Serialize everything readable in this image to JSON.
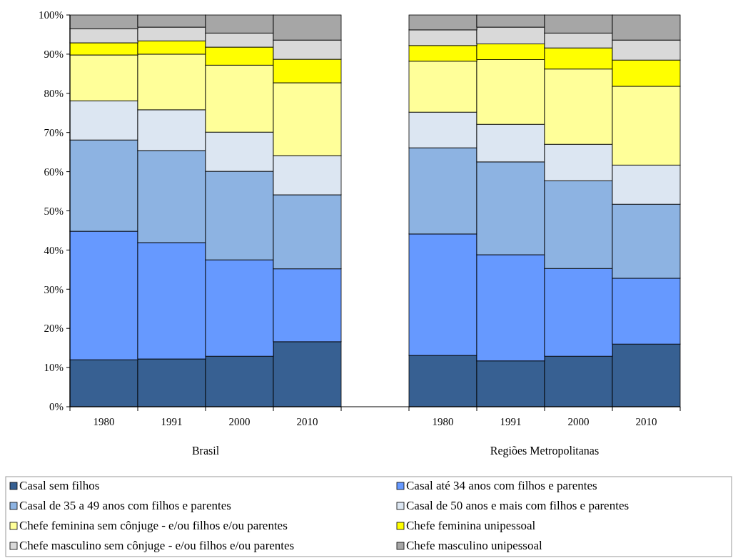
{
  "chart_data": {
    "type": "bar",
    "stacked": true,
    "categories": [
      "1980",
      "1991",
      "2000",
      "2010",
      null,
      "1980",
      "1991",
      "2000",
      "2010"
    ],
    "ylim": [
      0,
      100
    ],
    "yticks": [
      {
        "value": 0,
        "label": "0%"
      },
      {
        "value": 10,
        "label": "10%"
      },
      {
        "value": 20,
        "label": "20%"
      },
      {
        "value": 30,
        "label": "30%"
      },
      {
        "value": 40,
        "label": "40%"
      },
      {
        "value": 50,
        "label": "50%"
      },
      {
        "value": 60,
        "label": "60%"
      },
      {
        "value": 70,
        "label": "70%"
      },
      {
        "value": 80,
        "label": "80%"
      },
      {
        "value": 90,
        "label": "90%"
      },
      {
        "value": 100,
        "label": "100%"
      }
    ],
    "annotations": [
      "Brasil",
      "Regiões Metropolitanas"
    ],
    "legend": "bottom",
    "series": [
      {
        "name": "Casal sem filhos",
        "color": "#376092",
        "values": [
          12,
          12.2,
          12.9,
          16.6,
          null,
          13.1,
          11.7,
          12.9,
          16
        ]
      },
      {
        "name": "Casal até 34 anos com filhos e parentes",
        "color": "#6699ff",
        "values": [
          32.8,
          29.7,
          24.6,
          18.6,
          null,
          31,
          27.1,
          22.4,
          16.8
        ]
      },
      {
        "name": "Casal de 35 a 49 anos com filhos e parentes",
        "color": "#8db3e2",
        "values": [
          23.3,
          23.5,
          22.6,
          18.9,
          null,
          22,
          23.7,
          22.4,
          18.9
        ]
      },
      {
        "name": "Casal de 50 anos e mais com filhos e parentes",
        "color": "#dce6f2",
        "values": [
          10,
          10.4,
          10,
          10,
          null,
          9.1,
          9.6,
          9.3,
          10
        ]
      },
      {
        "name": "Chefe feminina sem cônjuge - e/ou filhos e/ou parentes",
        "color": "#ffff99",
        "values": [
          11.7,
          14.2,
          17.1,
          18.6,
          null,
          13,
          16.5,
          19.2,
          20.1
        ]
      },
      {
        "name": "Chefe feminina unipessoal",
        "color": "#ffff00",
        "values": [
          3.1,
          3.4,
          4.6,
          6,
          null,
          4,
          4,
          5.4,
          6.7
        ]
      },
      {
        "name": "Chefe masculino sem cônjuge - e/ou filhos e/ou parentes",
        "color": "#d9d9d9",
        "values": [
          3.6,
          3.5,
          3.6,
          4.9,
          null,
          4,
          4.3,
          3.8,
          5.1
        ]
      },
      {
        "name": "Chefe masculino unipessoal",
        "color": "#a6a6a6",
        "values": [
          3.5,
          3.1,
          4.6,
          6.4,
          null,
          3.8,
          3.1,
          4.6,
          6.4
        ]
      }
    ]
  }
}
